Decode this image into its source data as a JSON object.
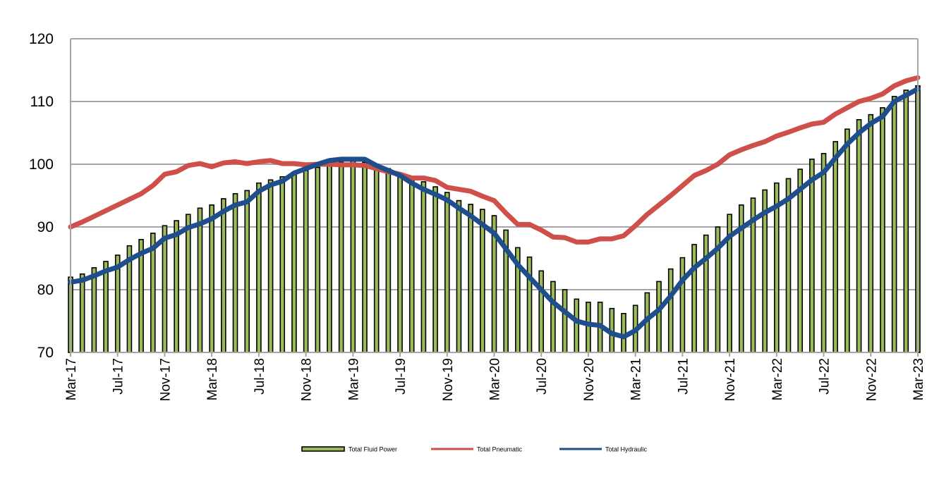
{
  "chart_data": {
    "type": "bar+line",
    "title": "",
    "xlabel": "",
    "ylabel": "",
    "ylim": [
      70,
      120
    ],
    "yticks": [
      70,
      80,
      90,
      100,
      110,
      120
    ],
    "grid": true,
    "legend_placement": "bottom",
    "x": [
      "Mar-17",
      "Apr-17",
      "May-17",
      "Jun-17",
      "Jul-17",
      "Aug-17",
      "Sep-17",
      "Oct-17",
      "Nov-17",
      "Dec-17",
      "Jan-18",
      "Feb-18",
      "Mar-18",
      "Apr-18",
      "May-18",
      "Jun-18",
      "Jul-18",
      "Aug-18",
      "Sep-18",
      "Oct-18",
      "Nov-18",
      "Dec-18",
      "Jan-19",
      "Feb-19",
      "Mar-19",
      "Apr-19",
      "May-19",
      "Jun-19",
      "Jul-19",
      "Aug-19",
      "Sep-19",
      "Oct-19",
      "Nov-19",
      "Dec-19",
      "Jan-20",
      "Feb-20",
      "Mar-20",
      "Apr-20",
      "May-20",
      "Jun-20",
      "Jul-20",
      "Aug-20",
      "Sep-20",
      "Oct-20",
      "Nov-20",
      "Dec-20",
      "Jan-21",
      "Feb-21",
      "Mar-21",
      "Apr-21",
      "May-21",
      "Jun-21",
      "Jul-21",
      "Aug-21",
      "Sep-21",
      "Oct-21",
      "Nov-21",
      "Dec-21",
      "Jan-22",
      "Feb-22",
      "Mar-22",
      "Apr-22",
      "May-22",
      "Jun-22",
      "Jul-22",
      "Aug-22",
      "Sep-22",
      "Oct-22",
      "Nov-22",
      "Dec-22",
      "Jan-23",
      "Feb-23",
      "Mar-23"
    ],
    "x_tick_labels": [
      "Mar-17",
      "Jul-17",
      "Nov-17",
      "Mar-18",
      "Jul-18",
      "Nov-18",
      "Mar-19",
      "Jul-19",
      "Nov-19",
      "Mar-20",
      "Jul-20",
      "Nov-20",
      "Mar-21",
      "Jul-21",
      "Nov-21",
      "Mar-22",
      "Jul-22",
      "Nov-22",
      "Mar-23"
    ],
    "series": [
      {
        "name": "Total Fluid Power",
        "type": "bar",
        "color": "#9bbb59",
        "values": [
          82,
          82.5,
          83.5,
          84.5,
          85.5,
          87,
          88,
          89,
          90.2,
          91,
          92,
          93,
          93.5,
          94.5,
          95.3,
          95.8,
          97,
          97.5,
          98,
          98.7,
          99,
          99.5,
          100,
          100.3,
          100.5,
          100.3,
          100,
          99.3,
          98.5,
          97.8,
          97.2,
          96.4,
          95.5,
          94.2,
          93.6,
          92.8,
          91.8,
          89.5,
          86.7,
          85.2,
          83,
          81.3,
          80,
          78.5,
          78,
          78,
          77,
          76.2,
          77.5,
          79.5,
          81.3,
          83.3,
          85.1,
          87.2,
          88.7,
          90,
          92,
          93.5,
          94.6,
          95.9,
          97,
          97.7,
          99.2,
          100.8,
          101.7,
          103.6,
          105.6,
          107.1,
          107.9,
          109,
          110.8,
          111.8,
          112.5
        ]
      },
      {
        "name": "Total Pneumatic",
        "type": "line",
        "color": "#cf504b",
        "values": [
          90,
          90.8,
          91.7,
          92.6,
          93.5,
          94.4,
          95.3,
          96.6,
          98.4,
          98.8,
          99.8,
          100.1,
          99.6,
          100.2,
          100.4,
          100.1,
          100.4,
          100.6,
          100.1,
          100.1,
          99.9,
          100,
          100,
          99.9,
          99.9,
          99.8,
          99.3,
          98.8,
          98.4,
          97.8,
          97.8,
          97.4,
          96.3,
          96,
          95.7,
          94.9,
          94.2,
          92.2,
          90.4,
          90.4,
          89.5,
          88.4,
          88.3,
          87.6,
          87.6,
          88.1,
          88.1,
          88.6,
          90.2,
          92,
          93.5,
          95,
          96.6,
          98.2,
          99,
          100,
          101.5,
          102.3,
          103,
          103.6,
          104.5,
          105.1,
          105.8,
          106.4,
          106.7,
          108,
          109,
          110,
          110.5,
          111.2,
          112.5,
          113.3,
          113.8
        ]
      },
      {
        "name": "Total Hydraulic",
        "type": "line",
        "color": "#1f4e8c",
        "values": [
          81.2,
          81.5,
          82.2,
          83,
          83.6,
          84.8,
          85.8,
          86.6,
          88.2,
          88.8,
          89.9,
          90.5,
          91.3,
          92.5,
          93.5,
          94,
          95.7,
          96.7,
          97.3,
          98.6,
          99.3,
          100,
          100.6,
          100.8,
          100.8,
          100.8,
          99.8,
          99,
          98.2,
          97,
          96,
          95.2,
          94.3,
          93,
          91.8,
          90.4,
          89,
          86.5,
          84,
          82,
          80,
          78,
          76.5,
          75,
          74.5,
          74.3,
          73,
          72.5,
          73.5,
          75.3,
          76.8,
          79,
          81.5,
          83.5,
          85,
          86.6,
          88.5,
          89.8,
          91.1,
          92.3,
          93.3,
          94.5,
          96,
          97.5,
          98.7,
          101,
          103.2,
          105,
          106.5,
          107.6,
          110,
          111,
          112
        ]
      }
    ]
  }
}
